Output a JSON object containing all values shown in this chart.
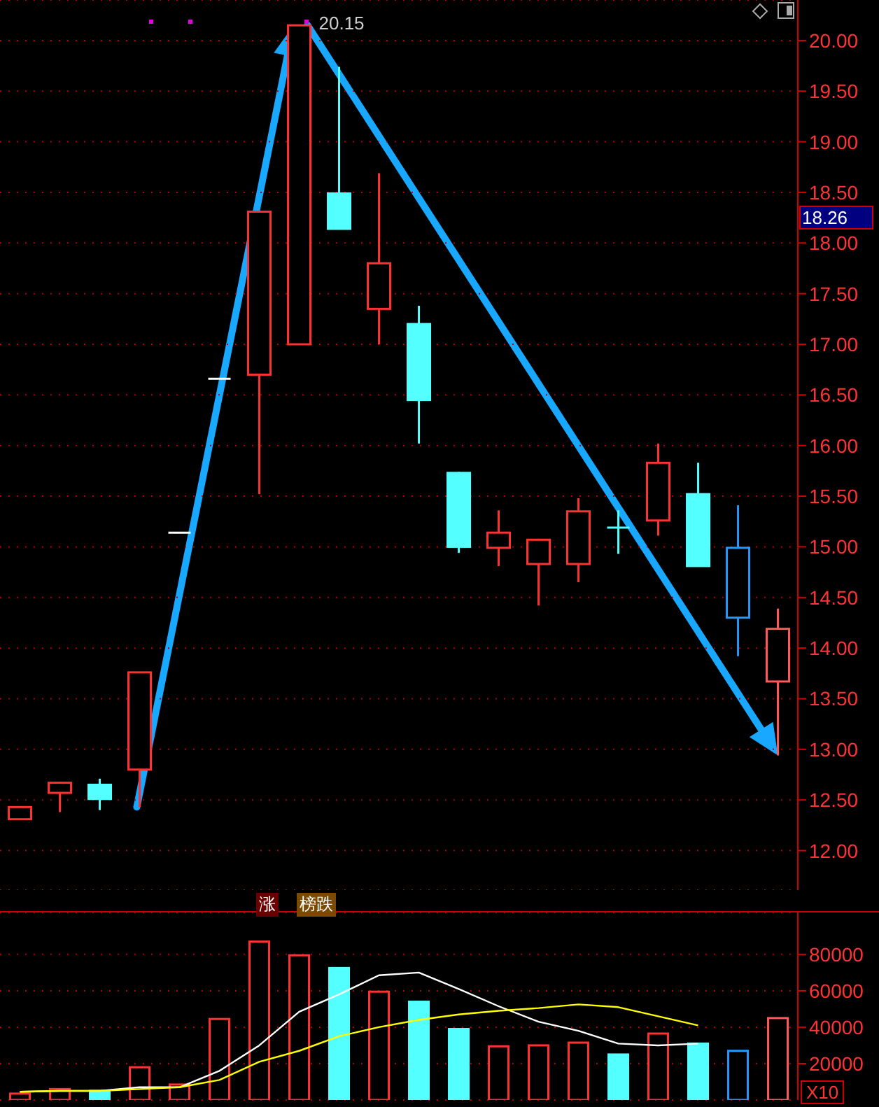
{
  "chart_data": [
    {
      "type": "candlestick",
      "categories": [
        null,
        null,
        null,
        null,
        null,
        null,
        null,
        null,
        null,
        null,
        null,
        null,
        null,
        null,
        null,
        null,
        null,
        null,
        null,
        null
      ],
      "ohlc": [
        [
          12.31,
          12.43,
          12.31,
          12.43
        ],
        [
          12.57,
          12.68,
          12.38,
          12.67
        ],
        [
          12.65,
          12.71,
          12.4,
          12.51
        ],
        [
          12.8,
          13.76,
          12.43,
          13.76
        ],
        [
          15.14,
          15.14,
          15.14,
          15.14
        ],
        [
          16.66,
          16.66,
          16.66,
          16.66
        ],
        [
          16.7,
          18.31,
          15.52,
          18.31
        ],
        [
          17.0,
          20.15,
          17.0,
          20.15
        ],
        [
          18.49,
          19.74,
          18.14,
          18.14
        ],
        [
          17.35,
          18.69,
          17.0,
          17.8
        ],
        [
          17.2,
          17.38,
          16.02,
          16.45
        ],
        [
          15.73,
          15.74,
          14.94,
          15.0
        ],
        [
          14.99,
          15.36,
          14.81,
          15.14
        ],
        [
          14.83,
          15.08,
          14.42,
          15.07
        ],
        [
          14.83,
          15.48,
          14.65,
          15.35
        ],
        [
          15.19,
          15.36,
          14.93,
          15.19
        ],
        [
          15.26,
          16.02,
          15.11,
          15.83
        ],
        [
          15.52,
          15.83,
          14.81,
          14.81
        ],
        [
          14.99,
          15.41,
          13.92,
          14.3
        ],
        [
          13.67,
          14.39,
          12.94,
          14.19
        ]
      ],
      "colors": [
        "#ff3232",
        "#ff3232",
        "#54ffff",
        "#ff3232",
        "#ffffff",
        "#ffffff",
        "#ff3232",
        "#ff3232",
        "#54ffff",
        "#ff3232",
        "#54ffff",
        "#54ffff",
        "#ff3232",
        "#ff3232",
        "#ff3232",
        "#54ffff",
        "#ff3232",
        "#54ffff",
        "#1e9bff",
        "#ff5a5a"
      ],
      "ylim": [
        11.61,
        20.4
      ],
      "yticks": [
        {
          "value": 12,
          "label": "12.00"
        },
        {
          "value": 12.5,
          "label": "12.50"
        },
        {
          "value": 13,
          "label": "13.00"
        },
        {
          "value": 13.5,
          "label": "13.50"
        },
        {
          "value": 14,
          "label": "14.00"
        },
        {
          "value": 14.5,
          "label": "14.50"
        },
        {
          "value": 15,
          "label": "15.00"
        },
        {
          "value": 15.5,
          "label": "15.50"
        },
        {
          "value": 16,
          "label": "16.00"
        },
        {
          "value": 16.5,
          "label": "16.50"
        },
        {
          "value": 17,
          "label": "17.00"
        },
        {
          "value": 17.5,
          "label": "17.50"
        },
        {
          "value": 18,
          "label": "18.00"
        },
        {
          "value": 18.5,
          "label": "18.50"
        },
        {
          "value": 19,
          "label": "19.00"
        },
        {
          "value": 19.5,
          "label": "19.50"
        },
        {
          "value": 20,
          "label": "20.00"
        }
      ],
      "grid": "y",
      "annotations": [
        "20.15",
        "18.26"
      ]
    },
    {
      "type": "bar",
      "categories": [
        null,
        null,
        null,
        null,
        null,
        null,
        null,
        null,
        null,
        null,
        null,
        null,
        null,
        null,
        null,
        null,
        null,
        null,
        null,
        null
      ],
      "series": [
        {
          "type": "bar",
          "values": [
            3500,
            6000,
            5000,
            18000,
            8500,
            44500,
            87000,
            79500,
            72500,
            59500,
            54000,
            39000,
            29500,
            30000,
            31500,
            25000,
            36500,
            31000,
            27000,
            45000
          ],
          "colors": [
            "#ff3232",
            "#ff3232",
            "#54ffff",
            "#ff3232",
            "#ff3232",
            "#ff3232",
            "#ff3232",
            "#ff3232",
            "#54ffff",
            "#ff3232",
            "#54ffff",
            "#54ffff",
            "#ff3232",
            "#ff3232",
            "#ff3232",
            "#54ffff",
            "#ff3232",
            "#54ffff",
            "#1e9bff",
            "#ff5a5a"
          ]
        },
        {
          "type": "line",
          "color": "#ffffff",
          "values": [
            4500,
            5000,
            5000,
            7000,
            7000,
            16000,
            30000,
            48500,
            58000,
            68500,
            70000,
            61000,
            51500,
            43000,
            38000,
            31000,
            30000,
            31000,
            null,
            null
          ]
        },
        {
          "type": "line",
          "color": "#ffff00",
          "values": [
            4500,
            5000,
            5000,
            6000,
            7000,
            11000,
            21000,
            27000,
            35000,
            40000,
            44000,
            47000,
            49000,
            50500,
            52500,
            51000,
            46000,
            41000,
            null,
            null
          ]
        }
      ],
      "ylim": [
        0,
        103000
      ],
      "yticks": [
        20000,
        40000,
        60000,
        80000
      ],
      "grid": "y",
      "annotations": [
        "涨",
        "榜跌",
        "X10"
      ]
    }
  ]
}
